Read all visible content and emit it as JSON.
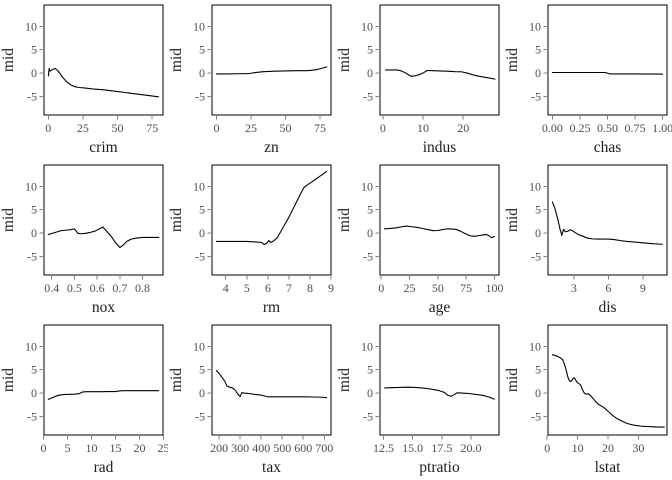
{
  "figure": {
    "background": "#ffffff",
    "line_color": "#000000",
    "box_color": "#000000",
    "tick_color": "#808080",
    "tick_label_color": "#4d4d4d",
    "axis_label_color": "#1f1f1f"
  },
  "chart_data": {
    "type": "line",
    "layout": {
      "rows": 3,
      "cols": 4,
      "grid": false,
      "legend": "none"
    },
    "title": "",
    "ylabel": "mid",
    "ylim": [
      -9.0,
      14.6
    ],
    "yticks": [
      10,
      5,
      0,
      -5
    ],
    "ytick_labels": [
      "10",
      "5",
      "0",
      "-5"
    ],
    "panels": [
      {
        "xlabel": "crim",
        "xlim": [
          -3.1,
          82.8
        ],
        "xticks": [
          0,
          25,
          50,
          75
        ],
        "xtick_labels": [
          "0",
          "25",
          "50",
          "75"
        ],
        "x": [
          0.1,
          0.6,
          1.2,
          2,
          3.5,
          5,
          6.5,
          8,
          10,
          13,
          16,
          19,
          22,
          26,
          32,
          40,
          48,
          56,
          64,
          72,
          79.5
        ],
        "y": [
          -0.6,
          1.0,
          0.4,
          0.6,
          0.8,
          1.0,
          0.6,
          0.1,
          -0.8,
          -1.8,
          -2.5,
          -2.9,
          -3.1,
          -3.2,
          -3.4,
          -3.6,
          -3.9,
          -4.2,
          -4.5,
          -4.8,
          -5.1
        ]
      },
      {
        "xlabel": "zn",
        "xlim": [
          -3.3,
          83.0
        ],
        "xticks": [
          0,
          25,
          50,
          75
        ],
        "xtick_labels": [
          "0",
          "25",
          "50",
          "75"
        ],
        "x": [
          0,
          8,
          16,
          24,
          28,
          34,
          42,
          50,
          58,
          66,
          72,
          76,
          80
        ],
        "y": [
          -0.2,
          -0.18,
          -0.15,
          -0.1,
          0.1,
          0.3,
          0.4,
          0.45,
          0.5,
          0.5,
          0.7,
          1.0,
          1.3
        ]
      },
      {
        "xlabel": "indus",
        "xlim": [
          -0.7,
          28.9
        ],
        "xticks": [
          0,
          10,
          20
        ],
        "xtick_labels": [
          "0",
          "10",
          "20"
        ],
        "x": [
          0.7,
          2,
          3.5,
          4.5,
          5.5,
          6.5,
          7.2,
          8,
          9,
          10,
          11,
          12.5,
          14,
          16,
          18,
          19.5,
          21,
          22.5,
          24,
          26,
          27.9
        ],
        "y": [
          0.65,
          0.68,
          0.66,
          0.5,
          0.1,
          -0.45,
          -0.7,
          -0.6,
          -0.35,
          0.0,
          0.55,
          0.5,
          0.45,
          0.4,
          0.3,
          0.28,
          0.0,
          -0.4,
          -0.7,
          -1.0,
          -1.3
        ]
      },
      {
        "xlabel": "chas",
        "xlim": [
          -0.04,
          1.04
        ],
        "xticks": [
          0,
          0.25,
          0.5,
          0.75,
          1
        ],
        "xtick_labels": [
          "0.00",
          "0.25",
          "0.50",
          "0.75",
          "1.00"
        ],
        "x": [
          0,
          0.48,
          0.52,
          1.0
        ],
        "y": [
          0.12,
          0.12,
          -0.18,
          -0.22
        ]
      },
      {
        "xlabel": "nox",
        "xlim": [
          0.366,
          0.89
        ],
        "xticks": [
          0.4,
          0.5,
          0.6,
          0.7,
          0.8
        ],
        "xtick_labels": [
          "0.4",
          "0.5",
          "0.6",
          "0.7",
          "0.8"
        ],
        "x": [
          0.385,
          0.4,
          0.42,
          0.44,
          0.46,
          0.48,
          0.5,
          0.508,
          0.515,
          0.53,
          0.55,
          0.57,
          0.59,
          0.61,
          0.625,
          0.64,
          0.66,
          0.68,
          0.7,
          0.715,
          0.73,
          0.75,
          0.77,
          0.8,
          0.835,
          0.871
        ],
        "y": [
          -0.3,
          -0.1,
          0.2,
          0.5,
          0.6,
          0.7,
          0.9,
          0.4,
          -0.05,
          -0.15,
          -0.05,
          0.15,
          0.4,
          0.9,
          1.3,
          0.5,
          -0.6,
          -2.0,
          -3.1,
          -2.6,
          -1.8,
          -1.3,
          -1.1,
          -0.95,
          -0.95,
          -0.95
        ]
      },
      {
        "xlabel": "rm",
        "xlim": [
          3.35,
          9.0
        ],
        "xticks": [
          4,
          5,
          6,
          7,
          8,
          9
        ],
        "xtick_labels": [
          "4",
          "5",
          "6",
          "7",
          "8",
          "9"
        ],
        "x": [
          3.56,
          4.0,
          4.5,
          5.0,
          5.4,
          5.7,
          5.82,
          5.95,
          6.05,
          6.12,
          6.2,
          6.3,
          6.45,
          6.6,
          6.8,
          7.0,
          7.2,
          7.4,
          7.6,
          7.72,
          7.9,
          8.1,
          8.35,
          8.6,
          8.78
        ],
        "y": [
          -1.8,
          -1.8,
          -1.8,
          -1.8,
          -1.9,
          -2.0,
          -2.45,
          -2.2,
          -1.6,
          -2.0,
          -1.9,
          -1.6,
          -1.0,
          0.2,
          1.8,
          3.4,
          5.2,
          7.0,
          8.8,
          9.8,
          10.4,
          11.0,
          11.8,
          12.6,
          13.2
        ]
      },
      {
        "xlabel": "age",
        "xlim": [
          -1.1,
          104
        ],
        "xticks": [
          0,
          25,
          50,
          75,
          100
        ],
        "xtick_labels": [
          "0",
          "25",
          "50",
          "75",
          "100"
        ],
        "x": [
          2.9,
          8,
          13,
          18,
          22,
          27,
          32,
          37,
          42,
          46,
          50,
          54,
          58,
          62,
          66,
          70,
          74,
          78,
          82,
          86,
          90,
          93,
          95.5,
          97.5,
          100
        ],
        "y": [
          0.9,
          1.0,
          1.1,
          1.35,
          1.5,
          1.35,
          1.2,
          0.95,
          0.7,
          0.5,
          0.55,
          0.75,
          0.9,
          0.85,
          0.8,
          0.4,
          -0.1,
          -0.55,
          -0.7,
          -0.55,
          -0.4,
          -0.3,
          -0.65,
          -1.0,
          -0.75
        ]
      },
      {
        "xlabel": "dis",
        "xlim": [
          0.75,
          11.1
        ],
        "xticks": [
          3,
          6,
          9
        ],
        "xtick_labels": [
          "3",
          "6",
          "9"
        ],
        "x": [
          1.13,
          1.35,
          1.6,
          1.8,
          1.95,
          2.1,
          2.25,
          2.45,
          2.65,
          2.85,
          3.1,
          3.4,
          3.8,
          4.2,
          4.6,
          5.0,
          5.5,
          6.0,
          6.5,
          7.0,
          7.6,
          8.2,
          9.0,
          10.0,
          10.7
        ],
        "y": [
          6.7,
          5.3,
          3.0,
          0.8,
          -0.5,
          0.8,
          0.3,
          0.35,
          0.7,
          0.55,
          0.1,
          -0.3,
          -0.7,
          -1.1,
          -1.25,
          -1.3,
          -1.3,
          -1.3,
          -1.4,
          -1.6,
          -1.8,
          -1.9,
          -2.1,
          -2.3,
          -2.4
        ]
      },
      {
        "xlabel": "rad",
        "xlim": [
          0.1,
          24.9
        ],
        "xticks": [
          0,
          5,
          10,
          15,
          20,
          25
        ],
        "xtick_labels": [
          "0",
          "5",
          "10",
          "15",
          "20",
          "25"
        ],
        "x": [
          1,
          1.8,
          2.6,
          3.5,
          4.5,
          5.5,
          6.5,
          7.5,
          8.2,
          9,
          10.5,
          12,
          13.5,
          15,
          15.8,
          16.5,
          18,
          19.5,
          21,
          22.5,
          24
        ],
        "y": [
          -1.35,
          -1.0,
          -0.65,
          -0.4,
          -0.3,
          -0.28,
          -0.25,
          -0.1,
          0.25,
          0.3,
          0.3,
          0.3,
          0.32,
          0.32,
          0.45,
          0.5,
          0.5,
          0.5,
          0.5,
          0.5,
          0.5
        ]
      },
      {
        "xlabel": "tax",
        "xlim": [
          166,
          732
        ],
        "xticks": [
          200,
          300,
          400,
          500,
          600,
          700
        ],
        "xtick_labels": [
          "200",
          "300",
          "400",
          "500",
          "600",
          "700"
        ],
        "x": [
          187,
          200,
          213,
          226,
          237,
          250,
          264,
          277,
          290,
          300,
          308,
          318,
          332,
          350,
          370,
          395,
          415,
          430,
          460,
          500,
          550,
          600,
          650,
          690,
          711
        ],
        "y": [
          4.8,
          4.2,
          3.4,
          2.6,
          1.5,
          1.25,
          1.1,
          0.6,
          -0.3,
          -0.75,
          0.1,
          0.0,
          -0.05,
          -0.15,
          -0.3,
          -0.4,
          -0.6,
          -0.8,
          -0.8,
          -0.8,
          -0.8,
          -0.8,
          -0.85,
          -0.9,
          -1.0
        ]
      },
      {
        "xlabel": "ptratio",
        "xlim": [
          12.2,
          22.4
        ],
        "xticks": [
          12.5,
          15,
          17.5,
          20
        ],
        "xtick_labels": [
          "12.5",
          "15.0",
          "17.5",
          "20.0"
        ],
        "x": [
          12.6,
          13.2,
          13.9,
          14.6,
          15.2,
          15.8,
          16.3,
          16.8,
          17.3,
          17.7,
          18.0,
          18.3,
          18.55,
          18.8,
          19.2,
          19.6,
          20.0,
          20.4,
          20.8,
          21.2,
          21.6,
          22.0
        ],
        "y": [
          1.1,
          1.15,
          1.2,
          1.25,
          1.2,
          1.1,
          0.95,
          0.75,
          0.5,
          0.15,
          -0.45,
          -0.7,
          -0.35,
          0.05,
          0.0,
          -0.05,
          -0.15,
          -0.3,
          -0.4,
          -0.6,
          -0.9,
          -1.3
        ]
      },
      {
        "xlabel": "lstat",
        "xlim": [
          0.25,
          39.4
        ],
        "xticks": [
          0,
          10,
          20,
          30
        ],
        "xtick_labels": [
          "0",
          "10",
          "20",
          "30"
        ],
        "x": [
          1.7,
          2.5,
          3.3,
          4.2,
          5.0,
          5.6,
          6.2,
          6.8,
          7.3,
          7.8,
          8.3,
          8.8,
          9.2,
          9.7,
          10.3,
          11.0,
          11.6,
          12.2,
          12.8,
          13.4,
          14.0,
          15.0,
          16.0,
          17.0,
          18.0,
          19.0,
          20.0,
          21.0,
          22.0,
          23.0,
          24.5,
          26.0,
          27.5,
          29.0,
          31.0,
          33.0,
          35.0,
          37.0,
          38.5
        ],
        "y": [
          8.2,
          8.1,
          7.9,
          7.6,
          7.2,
          6.3,
          5.0,
          3.4,
          2.6,
          2.5,
          2.9,
          3.3,
          3.0,
          2.4,
          2.1,
          1.7,
          0.7,
          0.0,
          -0.25,
          -0.15,
          -0.4,
          -1.1,
          -1.9,
          -2.5,
          -2.85,
          -3.3,
          -3.9,
          -4.5,
          -5.05,
          -5.5,
          -6.0,
          -6.45,
          -6.75,
          -6.95,
          -7.1,
          -7.2,
          -7.25,
          -7.3,
          -7.3
        ]
      }
    ]
  }
}
